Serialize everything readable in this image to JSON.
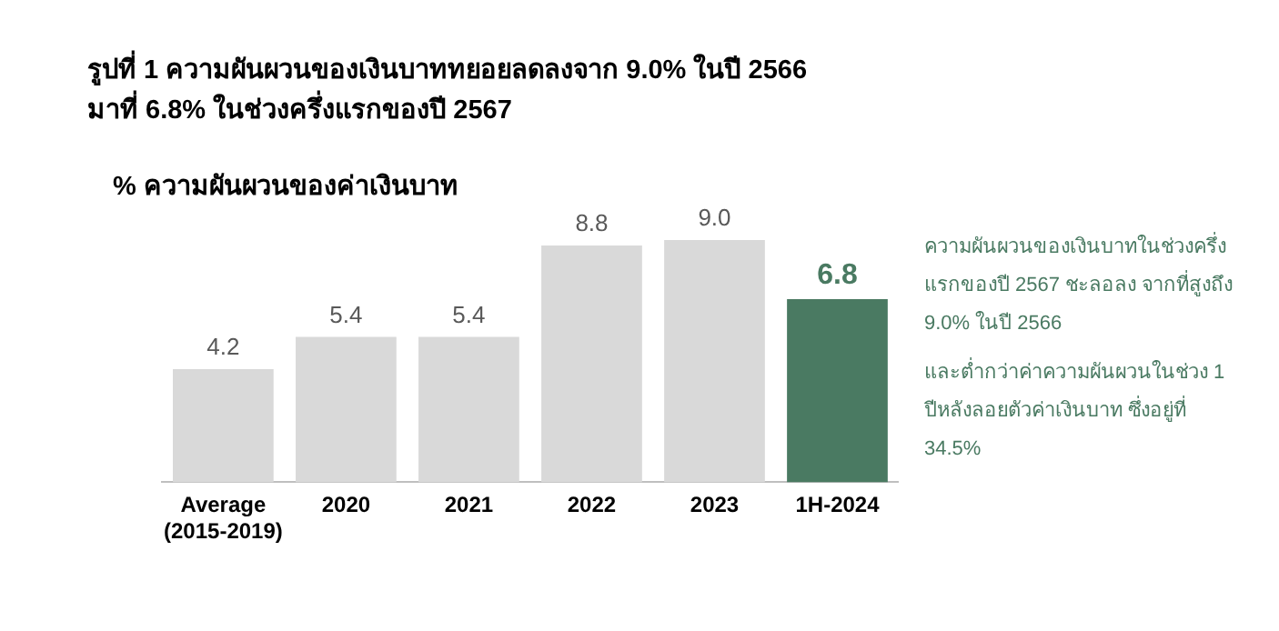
{
  "chart_data": {
    "type": "bar",
    "title": "รูปที่ 1 ความผันผวนของเงินบาททยอยลดลงจาก 9.0% ในปี 2566\nมาที่ 6.8% ในช่วงครึ่งแรกของปี 2567",
    "subtitle": "% ความผันผวนของค่าเงินบาท",
    "categories": [
      "Average (2015-2019)",
      "2020",
      "2021",
      "2022",
      "2023",
      "1H-2024"
    ],
    "values": [
      4.2,
      5.4,
      5.4,
      8.8,
      9.0,
      6.8
    ],
    "colors": [
      "#d9d9d9",
      "#d9d9d9",
      "#d9d9d9",
      "#d9d9d9",
      "#d9d9d9",
      "#4a7a62"
    ],
    "value_labels": [
      "4.2",
      "5.4",
      "5.4",
      "8.8",
      "9.0",
      "6.8"
    ],
    "annotations": [
      "ความผันผวนของเงินบาทในช่วงครึ่งแรกของปี 2567 ชะลอลง จากที่สูงถึง 9.0% ในปี 2566",
      "และต่ำกว่าค่าความผันผวนในช่วง 1 ปีหลังลอยตัวค่าเงินบาท ซึ่งอยู่ที่ 34.5%"
    ],
    "grid": false,
    "legend": false
  }
}
